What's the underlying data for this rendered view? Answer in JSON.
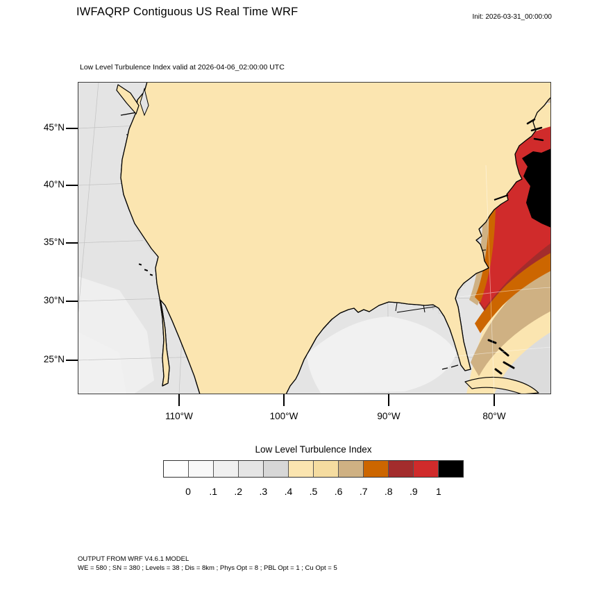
{
  "header": {
    "title": "IWFAQRP Contiguous US Real Time WRF",
    "init": "Init: 2026-03-31_00:00:00"
  },
  "plot": {
    "subtitle": "Low Level Turbulence Index valid at 2026-04-06_02:00:00 UTC",
    "lat_tick_labels": [
      "45°N",
      "40°N",
      "35°N",
      "30°N",
      "25°N"
    ],
    "lon_tick_labels": [
      "110°W",
      "100°W",
      "90°W",
      "80°W"
    ]
  },
  "colorbar": {
    "title": "Low Level Turbulence Index",
    "tick_labels": [
      "0",
      ".1",
      ".2",
      ".3",
      ".4",
      ".5",
      ".6",
      ".7",
      ".8",
      ".9",
      "1"
    ],
    "colors": [
      "#FEFEFE",
      "#F8F8F8",
      "#F0F0F0",
      "#E5E5E5",
      "#D7D7D7",
      "#FBE5B0",
      "#F5DCA0",
      "#CFB183",
      "#CC6600",
      "#A32C2C",
      "#D02B2B",
      "#000000"
    ]
  },
  "footer": {
    "line1": "OUTPUT FROM WRF V4.6.1 MODEL",
    "line2": "WE = 580 ; SN = 380 ; Levels = 38 ; Dis = 8km ; Phys Opt = 8 ; PBL Opt = 1 ; Cu Opt = 5"
  }
}
